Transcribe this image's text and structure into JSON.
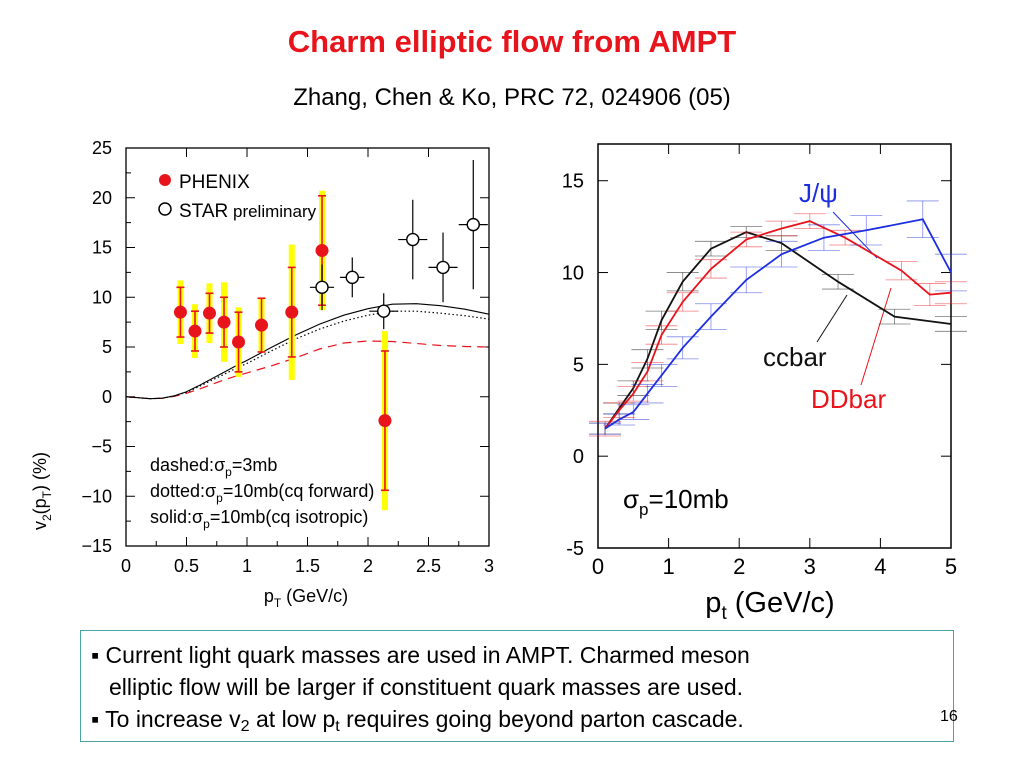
{
  "slide": {
    "title": "Charm elliptic flow from AMPT",
    "subtitle": "Zhang, Chen & Ko, PRC 72, 024906 (05)",
    "page_number": "16"
  },
  "notes": {
    "bullet1_line1": "Current light quark masses are used in AMPT. Charmed meson",
    "bullet1_line2": "elliptic flow will be larger if constituent quark masses are used.",
    "bullet2_pre": "To increase v",
    "bullet2_sub1": "2",
    "bullet2_mid": " at low p",
    "bullet2_sub2": "t",
    "bullet2_post": " requires going beyond parton cascade."
  },
  "colors": {
    "title": "#e8141c",
    "phenix": "#e8141c",
    "phenix_sys": "#ffff00",
    "ddbar": "#e8141c",
    "jpsi": "#1c2ee0",
    "ccbar": "#111111"
  },
  "chart_data": [
    {
      "type": "scatter",
      "xlabel_main": "p",
      "xlabel_sub": "T",
      "xlabel_rest": " (GeV/c)",
      "ylabel_main": "v",
      "ylabel_sub": "2",
      "ylabel_mid": "(p",
      "ylabel_sub2": "T",
      "ylabel_rest": ") (%)",
      "xlim": [
        0,
        3
      ],
      "ylim": [
        -15,
        25
      ],
      "xticks": [
        0,
        0.5,
        1,
        1.5,
        2,
        2.5,
        3
      ],
      "xtick_labels": [
        "0",
        "0.5",
        "1",
        "1.5",
        "2",
        "2.5",
        "3"
      ],
      "yticks": [
        -15,
        -10,
        -5,
        0,
        5,
        10,
        15,
        20,
        25
      ],
      "ytick_labels": [
        "−15",
        "−10",
        "−5",
        "0",
        "5",
        "10",
        "15",
        "20",
        "25"
      ],
      "legend": {
        "phenix": "PHENIX",
        "star": "STAR",
        "star_suffix": " preliminary",
        "position": "top-left"
      },
      "annotations": {
        "dashed": {
          "pre": "dashed:",
          "sigma": "σ",
          "sub": "p",
          "post": "=3mb"
        },
        "dotted": {
          "pre": "dotted:",
          "sigma": "σ",
          "sub": "p",
          "post": "=10mb(cq forward)"
        },
        "solid": {
          "pre": "solid:",
          "sigma": "σ",
          "sub": "p",
          "post": "=10mb(cq isotropic)"
        }
      },
      "series": [
        {
          "name": "PHENIX",
          "marker": "filled-circle",
          "points": [
            {
              "x": 0.45,
              "y": 8.5,
              "err": 2.5,
              "sys": 3.2
            },
            {
              "x": 0.57,
              "y": 6.6,
              "err": 2.0,
              "sys": 2.7
            },
            {
              "x": 0.69,
              "y": 8.4,
              "err": 2.0,
              "sys": 3.0
            },
            {
              "x": 0.81,
              "y": 7.5,
              "err": 2.5,
              "sys": 4.0
            },
            {
              "x": 0.93,
              "y": 5.5,
              "err": 3.0,
              "sys": 3.5
            },
            {
              "x": 1.12,
              "y": 7.2,
              "err": 2.7,
              "sys": 2.7
            },
            {
              "x": 1.37,
              "y": 8.5,
              "err": 4.5,
              "sys": 6.8
            },
            {
              "x": 1.62,
              "y": 14.7,
              "err": 5.5,
              "sys": 6.0
            },
            {
              "x": 2.14,
              "y": -2.4,
              "err": 7.0,
              "sys": 9.0
            }
          ]
        },
        {
          "name": "STAR",
          "marker": "open-circle",
          "points": [
            {
              "x": 1.62,
              "y": 11.0,
              "xerr": 0.1,
              "yerr": 2.3
            },
            {
              "x": 1.87,
              "y": 12.0,
              "xerr": 0.1,
              "yerr": 2.0
            },
            {
              "x": 2.13,
              "y": 8.6,
              "xerr": 0.12,
              "yerr": 1.8
            },
            {
              "x": 2.37,
              "y": 15.8,
              "xerr": 0.12,
              "yerr": 4.0
            },
            {
              "x": 2.62,
              "y": 13.0,
              "xerr": 0.12,
              "yerr": 3.5
            },
            {
              "x": 2.87,
              "y": 17.3,
              "xerr": 0.12,
              "yerr": 6.5
            }
          ]
        },
        {
          "name": "dashed",
          "style": "dashed",
          "x": [
            0,
            0.1,
            0.2,
            0.3,
            0.4,
            0.5,
            0.6,
            0.7,
            0.8,
            0.9,
            1.0,
            1.2,
            1.4,
            1.6,
            1.8,
            2.0,
            2.2,
            2.4,
            2.6,
            2.8,
            3.0
          ],
          "y": [
            0,
            -0.1,
            -0.2,
            -0.15,
            0.05,
            0.35,
            0.75,
            1.2,
            1.65,
            2.05,
            2.4,
            3.1,
            3.9,
            4.8,
            5.4,
            5.6,
            5.55,
            5.35,
            5.15,
            5.05,
            5.0
          ]
        },
        {
          "name": "dotted",
          "style": "dotted",
          "x": [
            0,
            0.1,
            0.2,
            0.3,
            0.4,
            0.5,
            0.6,
            0.7,
            0.8,
            0.9,
            1.0,
            1.2,
            1.4,
            1.6,
            1.8,
            2.0,
            2.2,
            2.4,
            2.6,
            2.8,
            3.0
          ],
          "y": [
            0,
            -0.1,
            -0.2,
            -0.15,
            0.1,
            0.45,
            1.0,
            1.6,
            2.2,
            2.8,
            3.35,
            4.6,
            5.8,
            6.8,
            7.6,
            8.2,
            8.6,
            8.6,
            8.4,
            8.15,
            7.8
          ]
        },
        {
          "name": "solid",
          "style": "solid",
          "x": [
            0,
            0.1,
            0.2,
            0.3,
            0.4,
            0.5,
            0.6,
            0.7,
            0.8,
            0.9,
            1.0,
            1.2,
            1.4,
            1.6,
            1.8,
            2.0,
            2.2,
            2.4,
            2.6,
            2.8,
            3.0
          ],
          "y": [
            0,
            -0.1,
            -0.2,
            -0.15,
            0.1,
            0.5,
            1.1,
            1.75,
            2.4,
            3.05,
            3.65,
            4.95,
            6.2,
            7.3,
            8.2,
            8.85,
            9.3,
            9.35,
            9.15,
            8.8,
            8.3
          ]
        }
      ]
    },
    {
      "type": "line",
      "xlabel_main": "p",
      "xlabel_sub": "t",
      "xlabel_rest": " (GeV/c)",
      "xlim": [
        0,
        5
      ],
      "ylim": [
        -5,
        17
      ],
      "xticks": [
        0,
        1,
        2,
        3,
        4,
        5
      ],
      "xtick_labels": [
        "0",
        "1",
        "2",
        "3",
        "4",
        "5"
      ],
      "yticks": [
        -5,
        0,
        5,
        10,
        15
      ],
      "ytick_labels": [
        "-5",
        "0",
        "5",
        "10",
        "15"
      ],
      "sigma_label": {
        "sigma": "σ",
        "sub": "p",
        "post": "=10mb"
      },
      "series": [
        {
          "name": "ccbar",
          "x": [
            0.1,
            0.3,
            0.5,
            0.7,
            0.9,
            1.2,
            1.6,
            2.1,
            2.6,
            3.4,
            4.2,
            5.0
          ],
          "y": [
            1.5,
            2.6,
            3.7,
            5.3,
            7.4,
            9.5,
            11.3,
            12.2,
            11.6,
            9.5,
            7.6,
            7.2
          ],
          "err": [
            0.3,
            0.3,
            0.4,
            0.5,
            0.5,
            0.5,
            0.4,
            0.3,
            0.4,
            0.4,
            0.4,
            0.4
          ]
        },
        {
          "name": "DDbar",
          "x": [
            0.1,
            0.3,
            0.5,
            0.7,
            0.9,
            1.2,
            1.6,
            2.1,
            2.6,
            3.0,
            3.5,
            4.3,
            4.7,
            5.0
          ],
          "y": [
            1.5,
            2.5,
            3.4,
            4.6,
            6.6,
            8.4,
            10.2,
            11.8,
            12.4,
            12.8,
            11.9,
            10.1,
            8.8,
            8.9
          ],
          "err": [
            0.4,
            0.4,
            0.4,
            0.5,
            0.5,
            0.5,
            0.5,
            0.4,
            0.4,
            0.4,
            0.4,
            0.5,
            0.6,
            0.6
          ]
        },
        {
          "name": "J/ψ",
          "x": [
            0.1,
            0.3,
            0.5,
            0.7,
            0.9,
            1.2,
            1.6,
            2.1,
            2.6,
            3.2,
            3.8,
            4.6,
            5.0
          ],
          "y": [
            1.5,
            2.0,
            2.4,
            3.4,
            4.4,
            5.9,
            7.6,
            9.6,
            11.0,
            11.9,
            12.3,
            12.9,
            10.0
          ],
          "err": [
            0.3,
            0.3,
            0.4,
            0.5,
            0.6,
            0.6,
            0.7,
            0.7,
            0.7,
            0.7,
            0.8,
            1.0,
            1.0
          ]
        }
      ]
    }
  ]
}
